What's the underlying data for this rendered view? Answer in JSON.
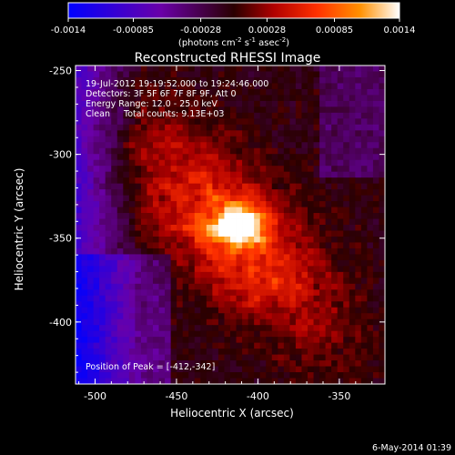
{
  "colorbar": {
    "ticks": [
      "-0.0014",
      "-0.00085",
      "-0.00028",
      "0.00028",
      "0.00085",
      "0.0014"
    ],
    "tick_values": [
      -0.0014,
      -0.00085,
      -0.00028,
      0.00028,
      0.00085,
      0.0014
    ],
    "range": [
      -0.0014,
      0.0014
    ],
    "units_main": "(photons cm",
    "units_sup1": "-2",
    "units_mid": " s",
    "units_sup2": "-1",
    "units_end": " asec",
    "units_sup3": "-2",
    "units_close": ")",
    "colors": [
      "#0000ff",
      "#6a00a8",
      "#2a0000",
      "#b00000",
      "#ff3000",
      "#ff9000",
      "#ffffff"
    ]
  },
  "image": {
    "title": "Reconstructed RHESSI Image",
    "info": [
      "19-Jul-2012 19:19:52.000 to 19:24:46.000",
      "Detectors: 3F 5F 6F 7F 8F 9F, Att 0",
      "Energy Range: 12.0 - 25.0 keV",
      "Clean     Total counts: 9.13E+03"
    ],
    "peak_label": "Position of Peak = [-412,-342]"
  },
  "chart_data": {
    "type": "heatmap",
    "title": "Reconstructed RHESSI Image",
    "xlabel": "Heliocentric X (arcsec)",
    "ylabel": "Heliocentric Y (arcsec)",
    "xlim": [
      -512,
      -322
    ],
    "ylim": [
      -437,
      -247
    ],
    "xticks": [
      -500,
      -450,
      -400,
      -350
    ],
    "yticks": [
      -250,
      -300,
      -350,
      -400
    ],
    "xtick_labels": [
      "-500",
      "-450",
      "-400",
      "-350"
    ],
    "ytick_labels": [
      "-250",
      "-300",
      "-350",
      "-400"
    ],
    "peak": {
      "x": -412,
      "y": -342
    },
    "color_range": [
      -0.0014,
      0.0014
    ]
  },
  "footer": {
    "date": "6-May-2014 01:39"
  }
}
